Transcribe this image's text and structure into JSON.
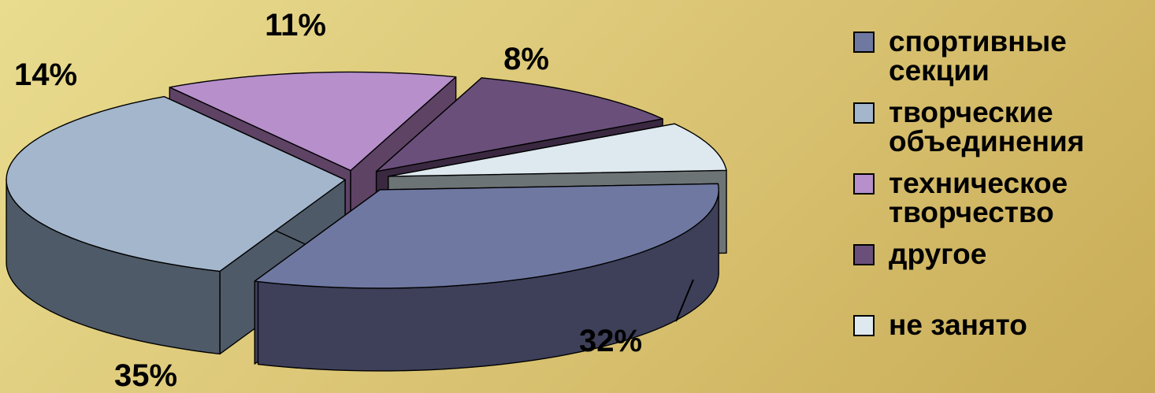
{
  "chart_data": {
    "type": "pie",
    "title": "",
    "labels": [
      "спортивные секции",
      "творческие объединения",
      "техническое творчество",
      "другое",
      "не занято"
    ],
    "values": [
      32,
      35,
      14,
      11,
      8
    ],
    "value_labels": [
      "32%",
      "35%",
      "14%",
      "11%",
      "8%"
    ],
    "colors": [
      "#6f78a1",
      "#a3b6cc",
      "#b68fcb",
      "#6a4f7b",
      "#dde8ef"
    ],
    "side_colors": [
      "#3e405a",
      "#4f5a68",
      "#5e4365",
      "#3a2840",
      "#6d7476"
    ],
    "style": "3d-exploded",
    "legend_position": "right"
  },
  "legend": {
    "items": [
      {
        "label": "спортивные секции"
      },
      {
        "label": "творческие объединения"
      },
      {
        "label": "техническое творчество"
      },
      {
        "label": "другое"
      },
      {
        "label": "не занято"
      }
    ]
  }
}
